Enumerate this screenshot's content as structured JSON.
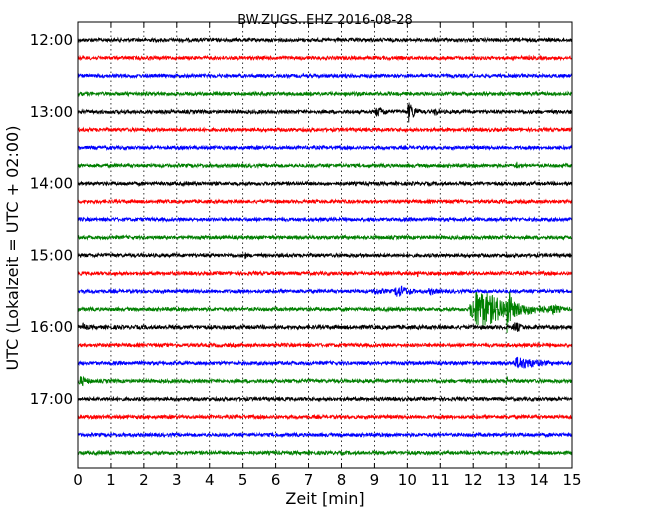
{
  "chart_data": {
    "type": "line",
    "title": "BW.ZUGS..EHZ 2016-08-28",
    "xlabel": "Zeit  [min]",
    "ylabel": "UTC (Lokalzeit = UTC + 02:00)",
    "xlim": [
      0,
      15
    ],
    "x_ticks": [
      "0",
      "1",
      "2",
      "3",
      "4",
      "5",
      "6",
      "7",
      "8",
      "9",
      "10",
      "11",
      "12",
      "13",
      "14",
      "15"
    ],
    "y_tick_labels": [
      "12:00",
      "13:00",
      "14:00",
      "15:00",
      "16:00",
      "17:00"
    ],
    "grid": true,
    "colors": {
      "black": "#000000",
      "red": "#ff0000",
      "blue": "#0000ff",
      "green": "#008000"
    },
    "series": [
      {
        "start": "12:00",
        "color": "black",
        "amp": 1.8,
        "events": []
      },
      {
        "start": "12:15",
        "color": "red",
        "amp": 1.8,
        "events": []
      },
      {
        "start": "12:30",
        "color": "blue",
        "amp": 1.8,
        "events": [
          {
            "t": 1.3,
            "amp": 6,
            "dur": 0.15
          }
        ]
      },
      {
        "start": "12:45",
        "color": "green",
        "amp": 1.8,
        "events": [
          {
            "t": 8.1,
            "amp": 5,
            "dur": 0.1
          }
        ]
      },
      {
        "start": "13:00",
        "color": "black",
        "amp": 1.8,
        "events": [
          {
            "t": 9.0,
            "amp": 7,
            "dur": 0.9
          },
          {
            "t": 10.0,
            "amp": 14,
            "dur": 0.5
          },
          {
            "t": 10.8,
            "amp": 6,
            "dur": 0.4
          }
        ]
      },
      {
        "start": "13:15",
        "color": "red",
        "amp": 1.8,
        "events": []
      },
      {
        "start": "13:30",
        "color": "blue",
        "amp": 1.8,
        "events": []
      },
      {
        "start": "13:45",
        "color": "green",
        "amp": 1.8,
        "events": [
          {
            "t": 13.3,
            "amp": 6,
            "dur": 0.15
          }
        ]
      },
      {
        "start": "14:00",
        "color": "black",
        "amp": 1.8,
        "events": [
          {
            "t": 8.8,
            "amp": 4,
            "dur": 0.1
          }
        ]
      },
      {
        "start": "14:15",
        "color": "red",
        "amp": 1.8,
        "events": [
          {
            "t": 6.2,
            "amp": 4,
            "dur": 0.1
          }
        ]
      },
      {
        "start": "14:30",
        "color": "blue",
        "amp": 1.8,
        "events": [
          {
            "t": 12.8,
            "amp": 6,
            "dur": 0.1
          }
        ]
      },
      {
        "start": "14:45",
        "color": "green",
        "amp": 1.8,
        "events": []
      },
      {
        "start": "15:00",
        "color": "black",
        "amp": 1.8,
        "events": [
          {
            "t": 5.05,
            "amp": 9,
            "dur": 0.08
          }
        ]
      },
      {
        "start": "15:15",
        "color": "red",
        "amp": 1.8,
        "events": [
          {
            "t": 4.0,
            "amp": 4,
            "dur": 0.08
          },
          {
            "t": 10.3,
            "amp": 6,
            "dur": 0.08
          }
        ]
      },
      {
        "start": "15:30",
        "color": "blue",
        "amp": 1.8,
        "events": [
          {
            "t": 8.9,
            "amp": 5,
            "dur": 1.2
          },
          {
            "t": 9.6,
            "amp": 9,
            "dur": 1.0
          },
          {
            "t": 10.6,
            "amp": 5,
            "dur": 1.0
          }
        ]
      },
      {
        "start": "15:45",
        "color": "green",
        "amp": 1.8,
        "events": [
          {
            "t": 11.9,
            "amp": 26,
            "dur": 2.5
          },
          {
            "t": 13.0,
            "amp": 40,
            "dur": 0.3
          },
          {
            "t": 14.3,
            "amp": 8,
            "dur": 0.8
          }
        ]
      },
      {
        "start": "16:00",
        "color": "black",
        "amp": 2.0,
        "events": [
          {
            "t": 0.1,
            "amp": 6,
            "dur": 0.5
          },
          {
            "t": 13.2,
            "amp": 8,
            "dur": 0.6
          }
        ]
      },
      {
        "start": "16:15",
        "color": "red",
        "amp": 1.8,
        "events": []
      },
      {
        "start": "16:30",
        "color": "blue",
        "amp": 1.8,
        "events": [
          {
            "t": 13.2,
            "amp": 9,
            "dur": 1.8
          }
        ]
      },
      {
        "start": "16:45",
        "color": "green",
        "amp": 1.8,
        "events": [
          {
            "t": 0.0,
            "amp": 7,
            "dur": 0.8
          },
          {
            "t": 13.0,
            "amp": 8,
            "dur": 0.2
          }
        ]
      },
      {
        "start": "17:00",
        "color": "black",
        "amp": 1.8,
        "events": []
      },
      {
        "start": "17:15",
        "color": "red",
        "amp": 1.8,
        "events": []
      },
      {
        "start": "17:30",
        "color": "blue",
        "amp": 1.8,
        "events": []
      },
      {
        "start": "17:45",
        "color": "green",
        "amp": 1.8,
        "events": []
      }
    ]
  }
}
